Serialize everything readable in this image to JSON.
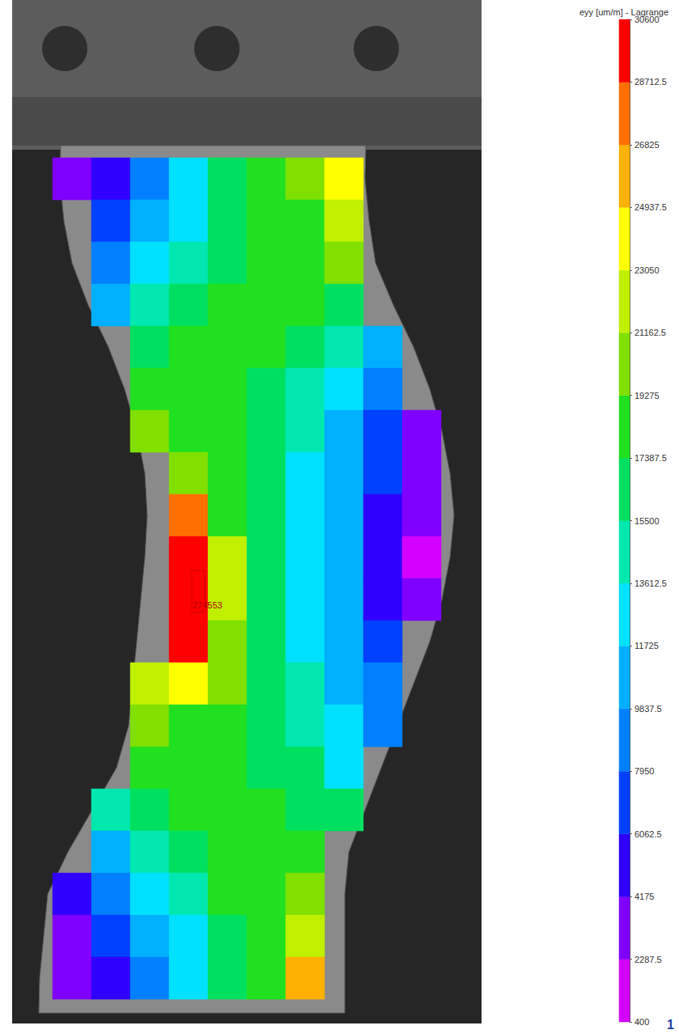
{
  "chart_data": {
    "type": "heatmap",
    "title": "eyy [um/m] - Lagrange",
    "annotation": "274553",
    "page_number": "1",
    "tick_labels": false,
    "grid": false,
    "cells": [
      [
        2500,
        6000,
        9000,
        12500,
        15500,
        17500,
        19500,
        23500,
        null,
        null
      ],
      [
        null,
        7000,
        10000,
        13500,
        16500,
        17800,
        19000,
        22000,
        null,
        null
      ],
      [
        null,
        8500,
        12000,
        15000,
        17200,
        17800,
        18500,
        19500,
        null,
        null
      ],
      [
        null,
        11000,
        14000,
        16500,
        17500,
        17800,
        17500,
        16500,
        null,
        null
      ],
      [
        null,
        null,
        16500,
        17500,
        17800,
        17500,
        16500,
        14500,
        11000,
        null
      ],
      [
        null,
        null,
        18500,
        18000,
        17800,
        16800,
        15000,
        12500,
        9000,
        null
      ],
      [
        null,
        null,
        21000,
        19000,
        18000,
        16500,
        14000,
        11000,
        7500,
        3500
      ],
      [
        null,
        null,
        null,
        21000,
        18500,
        16500,
        13500,
        10000,
        6500,
        3000
      ],
      [
        null,
        null,
        null,
        27000,
        19000,
        16500,
        13500,
        10000,
        6000,
        2500
      ],
      [
        null,
        null,
        null,
        30000,
        21500,
        16500,
        13500,
        10000,
        6000,
        2000
      ],
      [
        null,
        null,
        null,
        30000,
        21500,
        17000,
        13500,
        10000,
        6000,
        2500
      ],
      [
        null,
        null,
        null,
        29000,
        21000,
        17000,
        13500,
        10500,
        7000,
        null
      ],
      [
        null,
        null,
        22000,
        24000,
        19500,
        17000,
        14000,
        11000,
        8000,
        null
      ],
      [
        null,
        null,
        19500,
        19000,
        18000,
        17000,
        14500,
        12000,
        9500,
        null
      ],
      [
        null,
        null,
        18000,
        18000,
        17800,
        17200,
        15500,
        13500,
        null,
        null
      ],
      [
        null,
        14500,
        16000,
        17500,
        17800,
        17500,
        17000,
        16500,
        null,
        null
      ],
      [
        null,
        11000,
        14000,
        16500,
        17800,
        17800,
        18500,
        null,
        null,
        null
      ],
      [
        5500,
        9000,
        12000,
        15000,
        17500,
        17800,
        20500,
        null,
        null,
        null
      ],
      [
        4000,
        7500,
        10500,
        13500,
        16500,
        17800,
        23000,
        null,
        null,
        null
      ],
      [
        2500,
        6000,
        9000,
        12000,
        15500,
        17800,
        25500,
        null,
        null,
        null
      ]
    ],
    "colorbar_range": [
      400,
      30600
    ],
    "colorbar_ticks": [
      400,
      2287.5,
      4175,
      6062.5,
      7950,
      9837.5,
      11725,
      13612.5,
      15500,
      17387.5,
      19275,
      21162.5,
      23050,
      24937.5,
      26825,
      28712.5,
      30600
    ],
    "colors": [
      "#d200ff",
      "#8000ff",
      "#3000ff",
      "#0040ff",
      "#0080ff",
      "#00b0ff",
      "#00e0ff",
      "#00e8b0",
      "#00e060",
      "#20e020",
      "#80e000",
      "#c0f000",
      "#ffff00",
      "#ffb000",
      "#ff7000",
      "#ff0000"
    ]
  }
}
